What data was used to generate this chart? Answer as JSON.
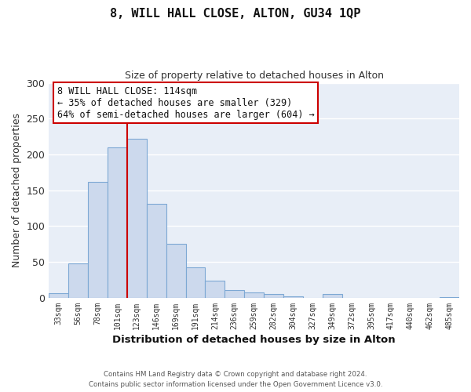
{
  "title": "8, WILL HALL CLOSE, ALTON, GU34 1QP",
  "subtitle": "Size of property relative to detached houses in Alton",
  "xlabel": "Distribution of detached houses by size in Alton",
  "ylabel": "Number of detached properties",
  "bin_labels": [
    "33sqm",
    "56sqm",
    "78sqm",
    "101sqm",
    "123sqm",
    "146sqm",
    "169sqm",
    "191sqm",
    "214sqm",
    "236sqm",
    "259sqm",
    "282sqm",
    "304sqm",
    "327sqm",
    "349sqm",
    "372sqm",
    "395sqm",
    "417sqm",
    "440sqm",
    "462sqm",
    "485sqm"
  ],
  "bar_values": [
    7,
    48,
    162,
    210,
    222,
    131,
    75,
    43,
    24,
    11,
    8,
    5,
    2,
    0,
    5,
    0,
    0,
    0,
    0,
    0,
    1
  ],
  "bar_color": "#ccd9ed",
  "bar_edgecolor": "#7da8d4",
  "plot_bg_color": "#e8eef7",
  "fig_bg_color": "#ffffff",
  "grid_color": "#ffffff",
  "property_line_color": "#cc0000",
  "annotation_text": "8 WILL HALL CLOSE: 114sqm\n← 35% of detached houses are smaller (329)\n64% of semi-detached houses are larger (604) →",
  "annotation_box_facecolor": "#ffffff",
  "annotation_box_edgecolor": "#cc0000",
  "ylim": [
    0,
    300
  ],
  "yticks": [
    0,
    50,
    100,
    150,
    200,
    250,
    300
  ],
  "footer_line1": "Contains HM Land Registry data © Crown copyright and database right 2024.",
  "footer_line2": "Contains public sector information licensed under the Open Government Licence v3.0.",
  "property_sqm": 114
}
